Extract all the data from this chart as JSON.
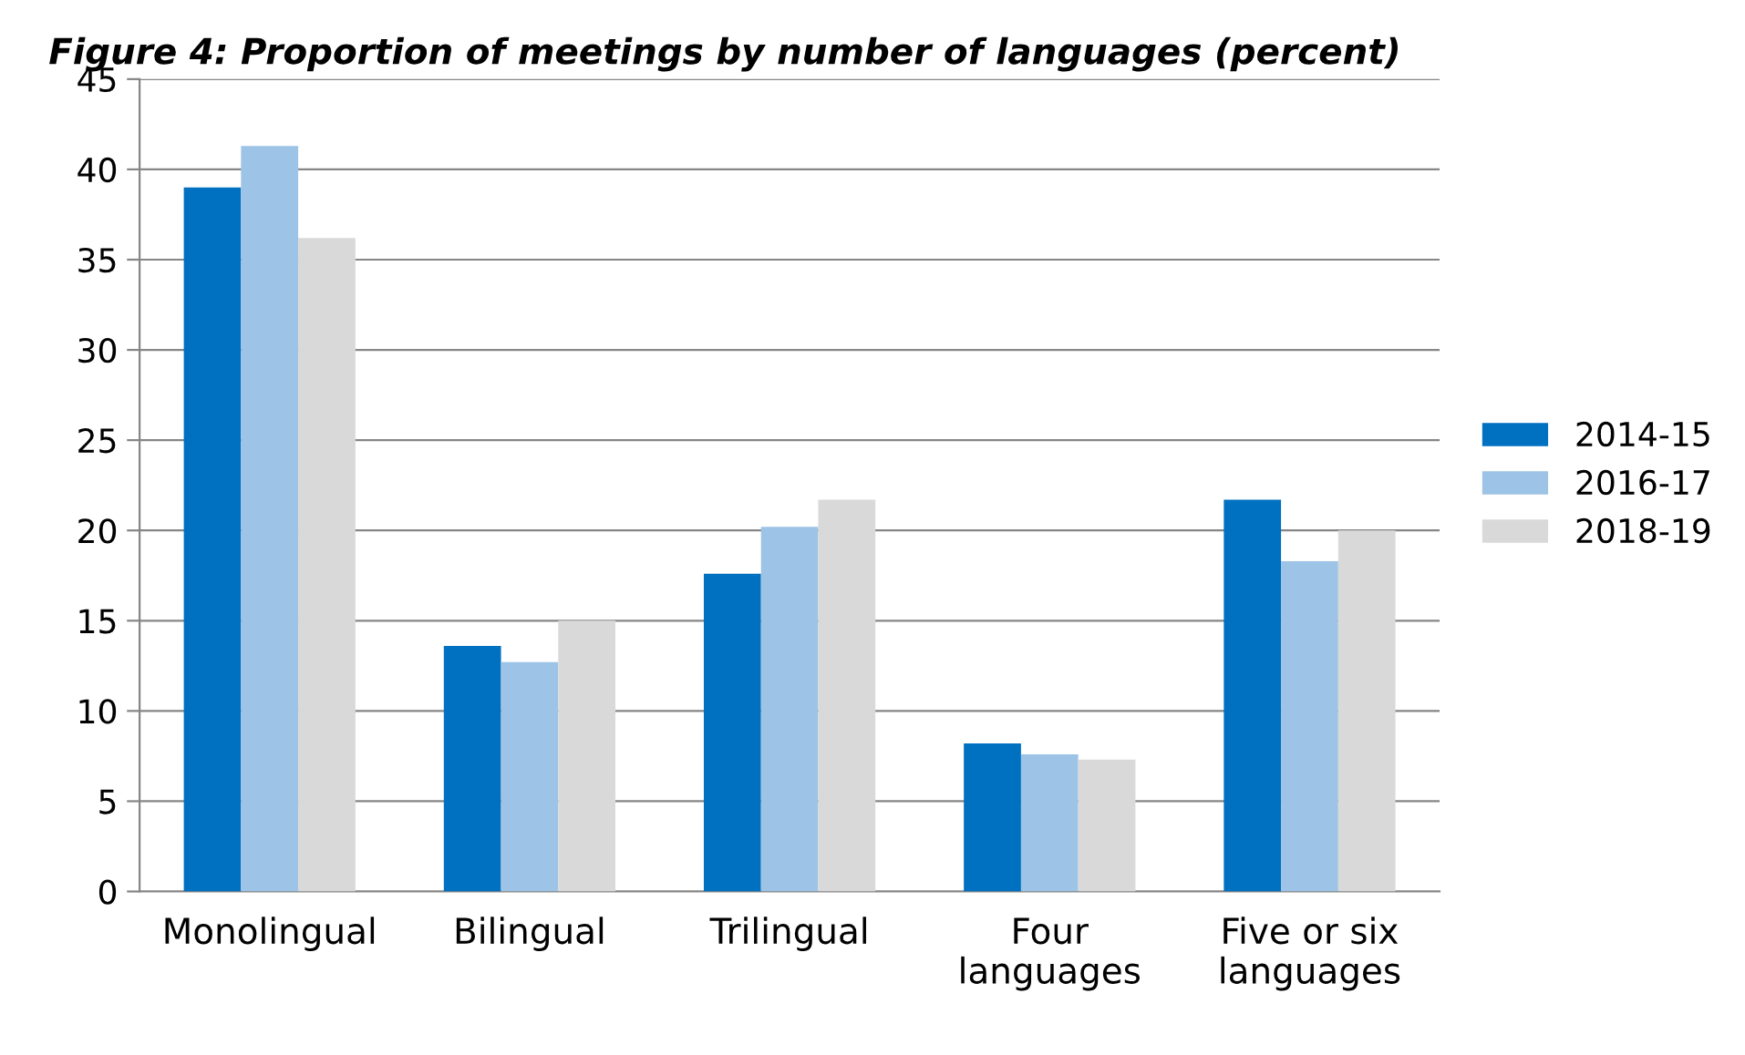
{
  "chart_data": {
    "type": "bar",
    "title": "Figure 4: Proportion of meetings by number of languages (percent)",
    "categories": [
      "Monolingual",
      "Bilingual",
      "Trilingual",
      "Four\nlanguages",
      "Five or six\nlanguages"
    ],
    "series": [
      {
        "name": "2014-15",
        "color": "#0070c0",
        "values": [
          39.0,
          13.6,
          17.6,
          8.2,
          21.7
        ]
      },
      {
        "name": "2016-17",
        "color": "#9dc3e6",
        "values": [
          41.3,
          12.7,
          20.2,
          7.6,
          18.3
        ]
      },
      {
        "name": "2018-19",
        "color": "#d9d9d9",
        "values": [
          36.2,
          15.0,
          21.7,
          7.3,
          20.0
        ]
      }
    ],
    "ylim": [
      0,
      45
    ],
    "yticks": [
      0,
      5,
      10,
      15,
      20,
      25,
      30,
      35,
      40,
      45
    ],
    "grid": "y",
    "legend": "right"
  }
}
